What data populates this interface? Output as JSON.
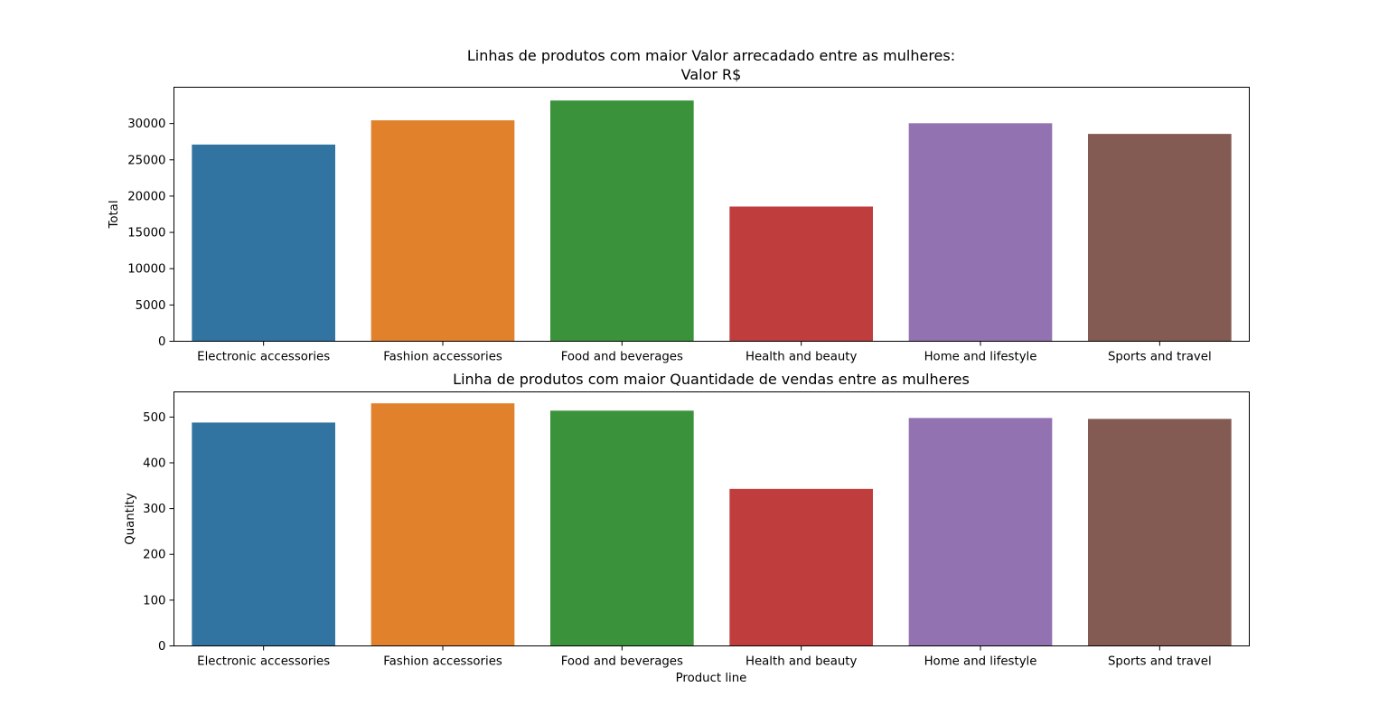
{
  "chart_data": [
    {
      "type": "bar",
      "title": "Linhas de produtos com maior Valor arrecadado entre as mulheres:\nValor R$",
      "xlabel": "",
      "ylabel": "Total",
      "ylim": [
        0,
        35000
      ],
      "yticks": [
        0,
        5000,
        10000,
        15000,
        20000,
        25000,
        30000
      ],
      "grid": false,
      "categories": [
        "Electronic accessories",
        "Fashion accessories",
        "Food and beverages",
        "Health and beauty",
        "Home and lifestyle",
        "Sports and travel"
      ],
      "values": [
        27100,
        30440,
        33170,
        18560,
        30040,
        28570
      ]
    },
    {
      "type": "bar",
      "title": "Linha de produtos com maior Quantidade de vendas entre as mulheres",
      "xlabel": "Product line",
      "ylabel": "Quantity",
      "ylim": [
        0,
        555
      ],
      "yticks": [
        0,
        100,
        200,
        300,
        400,
        500
      ],
      "grid": false,
      "categories": [
        "Electronic accessories",
        "Fashion accessories",
        "Food and beverages",
        "Health and beauty",
        "Home and lifestyle",
        "Sports and travel"
      ],
      "values": [
        488,
        530,
        514,
        343,
        498,
        496
      ]
    }
  ],
  "colors": [
    "#3274a1",
    "#e1812c",
    "#3a923a",
    "#c03d3e",
    "#9372b2",
    "#845b53"
  ]
}
